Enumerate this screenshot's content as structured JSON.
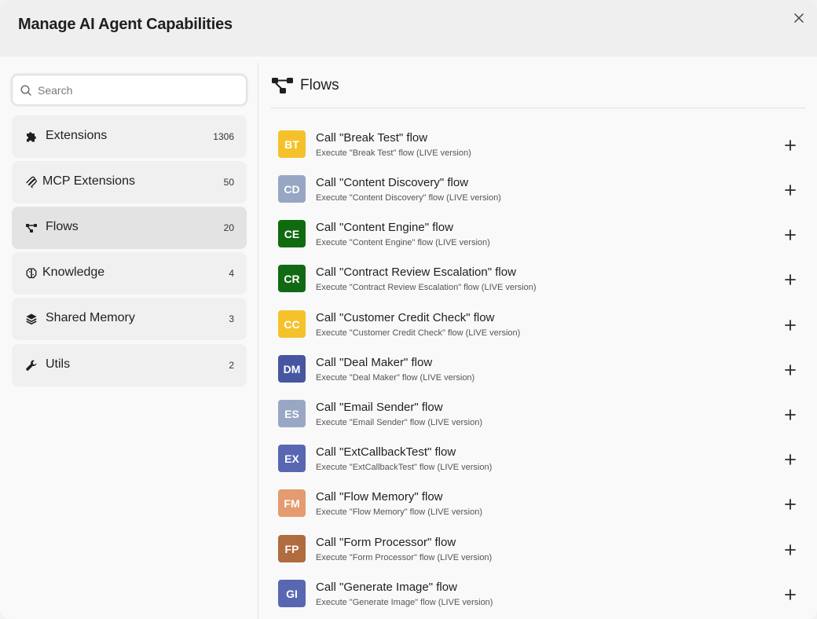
{
  "header": {
    "title": "Manage AI Agent Capabilities"
  },
  "search": {
    "placeholder": "Search",
    "value": ""
  },
  "sidebar": {
    "items": [
      {
        "label": "Extensions",
        "count": "1306",
        "icon": "puzzle-icon"
      },
      {
        "label": "MCP Extensions",
        "count": "50",
        "icon": "mcp-icon"
      },
      {
        "label": "Flows",
        "count": "20",
        "icon": "flows-icon",
        "active": true
      },
      {
        "label": "Knowledge",
        "count": "4",
        "icon": "brain-icon"
      },
      {
        "label": "Shared Memory",
        "count": "3",
        "icon": "layers-icon"
      },
      {
        "label": "Utils",
        "count": "2",
        "icon": "wrench-icon"
      }
    ]
  },
  "main": {
    "title": "Flows",
    "flows": [
      {
        "initials": "BT",
        "color": "#f5c12b",
        "title": "Call \"Break Test\" flow",
        "desc": "Execute \"Break Test\" flow (LIVE version)"
      },
      {
        "initials": "CD",
        "color": "#97a6c2",
        "title": "Call \"Content Discovery\" flow",
        "desc": "Execute \"Content Discovery\" flow (LIVE version)"
      },
      {
        "initials": "CE",
        "color": "#106a10",
        "title": "Call \"Content Engine\" flow",
        "desc": "Execute \"Content Engine\" flow (LIVE version)"
      },
      {
        "initials": "CR",
        "color": "#116a13",
        "title": "Call \"Contract Review Escalation\" flow",
        "desc": "Execute \"Contract Review Escalation\" flow (LIVE version)"
      },
      {
        "initials": "CC",
        "color": "#f5c22b",
        "title": "Call \"Customer Credit Check\" flow",
        "desc": "Execute \"Customer Credit Check\" flow (LIVE version)"
      },
      {
        "initials": "DM",
        "color": "#4656a0",
        "title": "Call \"Deal Maker\" flow",
        "desc": "Execute \"Deal Maker\" flow (LIVE version)"
      },
      {
        "initials": "ES",
        "color": "#98a7c3",
        "title": "Call \"Email Sender\" flow",
        "desc": "Execute \"Email Sender\" flow (LIVE version)"
      },
      {
        "initials": "EX",
        "color": "#5966b2",
        "title": "Call \"ExtCallbackTest\" flow",
        "desc": "Execute \"ExtCallbackTest\" flow (LIVE version)"
      },
      {
        "initials": "FM",
        "color": "#e39b6f",
        "title": "Call \"Flow Memory\" flow",
        "desc": "Execute \"Flow Memory\" flow (LIVE version)"
      },
      {
        "initials": "FP",
        "color": "#b06b3f",
        "title": "Call \"Form Processor\" flow",
        "desc": "Execute \"Form Processor\" flow (LIVE version)"
      },
      {
        "initials": "GI",
        "color": "#5966b2",
        "title": "Call \"Generate Image\" flow",
        "desc": "Execute \"Generate Image\" flow (LIVE version)"
      }
    ]
  }
}
